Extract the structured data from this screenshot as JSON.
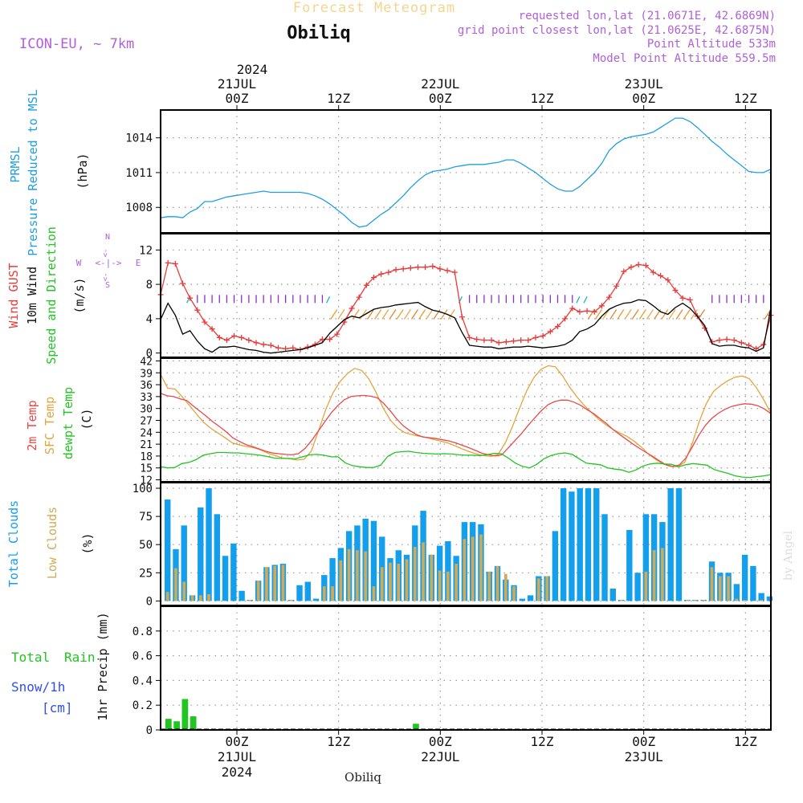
{
  "header": {
    "title": "Forecast Meteogram",
    "station": "Obiliq",
    "model": "ICON-EU, ~ 7km",
    "requested": "requested lon,lat (21.0671E, 42.6869N)",
    "gridpoint": "grid point closest lon,lat (21.0625E, 42.6875N)",
    "point_alt": "Point Altitude 533m",
    "model_alt": "Model Point Altitude 559.5m",
    "footer_station": "Obiliq",
    "watermark": "by Angel"
  },
  "time_axis": {
    "top_year": "2024",
    "top_labels": [
      {
        "l1": "21JUL",
        "l2": "00Z"
      },
      {
        "l1": "",
        "l2": "12Z"
      },
      {
        "l1": "22JUL",
        "l2": "00Z"
      },
      {
        "l1": "",
        "l2": "12Z"
      },
      {
        "l1": "23JUL",
        "l2": "00Z"
      },
      {
        "l1": "",
        "l2": "12Z"
      }
    ],
    "bottom_labels": [
      {
        "l1": "00Z",
        "l2": "21JUL",
        "l3": "2024"
      },
      {
        "l1": "12Z",
        "l2": "",
        "l3": ""
      },
      {
        "l1": "00Z",
        "l2": "22JUL",
        "l3": ""
      },
      {
        "l1": "12Z",
        "l2": "",
        "l3": ""
      },
      {
        "l1": "00Z",
        "l2": "23JUL",
        "l3": ""
      },
      {
        "l1": "12Z",
        "l2": "",
        "l3": ""
      }
    ]
  },
  "panels": {
    "pressure": {
      "label1": "PRMSL",
      "label2": "Pressure Reduced to MSL",
      "unit": "(hPa)",
      "ticks": [
        "1014",
        "1011",
        "1008"
      ]
    },
    "wind": {
      "label1": "Wind GUST",
      "label2": "10m Wind",
      "label3": "Speed and Direction",
      "unit": "(m/s)",
      "ticks": [
        "12",
        "8",
        "4",
        "0"
      ],
      "compass_n": "N",
      "compass_s": "S",
      "compass_w": "W",
      "compass_e": "E"
    },
    "temp": {
      "label1": "2m Temp",
      "label2": "SFC Temp",
      "label3": "dewpt Temp",
      "unit": "(C)",
      "ticks": [
        "42",
        "39",
        "36",
        "33",
        "30",
        "27",
        "24",
        "21",
        "18",
        "15",
        "12"
      ]
    },
    "clouds": {
      "label1": "Total Clouds",
      "label2": "Low Clouds",
      "unit": "(%)",
      "ticks": [
        "100",
        "75",
        "50",
        "25",
        "0"
      ]
    },
    "precip": {
      "label1": "Total",
      "label1b": "Rain",
      "label2": "Snow/1h",
      "label3": "[cm]",
      "ylabel": "1hr Precip (mm)",
      "ticks": [
        "0.8",
        "0.6",
        "0.4",
        "0.2",
        "0"
      ]
    }
  },
  "colors": {
    "pressure": "#1f9fe0",
    "gust": "#e83c3c",
    "wind": "#000000",
    "barb": "#8e2ad6",
    "temp2m": "#e84848",
    "sfc": "#e4a43c",
    "dew": "#22c422",
    "total_cloud": "#149fec",
    "low_cloud": "#d2aa55",
    "rain": "#22c422",
    "title": "#f5d58c",
    "purple": "#b060d8",
    "snow": "#2e4ef0"
  },
  "chart_data": {
    "type": "line",
    "x_start": "2024-07-20T15:00Z",
    "x_end": "2024-07-23T15:00Z",
    "step_hours": 1,
    "pressure_hpa": [
      1007.1,
      1007.2,
      1007.2,
      1007.1,
      1007.6,
      1007.9,
      1008.5,
      1008.5,
      1008.7,
      1008.9,
      1009.0,
      1009.1,
      1009.2,
      1009.3,
      1009.4,
      1009.3,
      1009.3,
      1009.3,
      1009.3,
      1009.3,
      1009.2,
      1009.0,
      1008.7,
      1008.3,
      1007.8,
      1007.3,
      1006.7,
      1006.3,
      1006.4,
      1006.9,
      1007.4,
      1007.8,
      1008.4,
      1009.0,
      1009.7,
      1010.3,
      1010.8,
      1011.1,
      1011.2,
      1011.3,
      1011.5,
      1011.6,
      1011.7,
      1011.7,
      1011.7,
      1011.8,
      1011.9,
      1012.1,
      1012.1,
      1011.8,
      1011.4,
      1011.0,
      1010.5,
      1010.0,
      1009.6,
      1009.4,
      1009.4,
      1009.8,
      1010.4,
      1011.0,
      1011.8,
      1012.9,
      1013.5,
      1013.9,
      1014.1,
      1014.2,
      1014.3,
      1014.5,
      1014.9,
      1015.3,
      1015.7,
      1015.7,
      1015.4,
      1014.9,
      1014.3,
      1013.7,
      1013.2,
      1012.6,
      1012.1,
      1011.6,
      1011.1,
      1011.0,
      1011.0,
      1011.3
    ],
    "gust_ms": [
      6.8,
      10.5,
      10.4,
      8.1,
      6.4,
      5.0,
      3.6,
      2.8,
      1.8,
      1.5,
      2.0,
      1.8,
      1.5,
      1.2,
      1.0,
      0.9,
      0.6,
      0.5,
      0.6,
      0.4,
      0.7,
      1.0,
      1.6,
      1.6,
      2.2,
      3.6,
      5.2,
      6.5,
      7.9,
      8.8,
      9.2,
      9.4,
      9.7,
      9.8,
      9.9,
      10.0,
      10.0,
      10.1,
      9.8,
      9.6,
      9.4,
      4.2,
      1.8,
      1.6,
      1.5,
      1.5,
      1.2,
      1.3,
      1.4,
      1.5,
      1.5,
      1.8,
      2.0,
      2.5,
      3.1,
      4.0,
      5.2,
      4.8,
      4.9,
      4.8,
      5.5,
      6.5,
      7.8,
      9.5,
      10.0,
      10.3,
      10.2,
      9.4,
      9.0,
      8.5,
      7.3,
      6.4,
      6.2,
      4.3,
      2.9,
      1.3,
      1.5,
      1.6,
      1.5,
      1.2,
      0.9,
      0.5,
      1.0,
      4.4
    ],
    "wind_ms": [
      3.9,
      5.8,
      4.4,
      2.2,
      2.6,
      1.4,
      0.5,
      0.1,
      0.7,
      0.7,
      0.8,
      0.6,
      0.4,
      0.3,
      0.1,
      0.0,
      0.1,
      0.2,
      0.3,
      0.4,
      0.6,
      0.9,
      1.2,
      2.3,
      3.1,
      3.9,
      4.3,
      4.1,
      4.6,
      5.1,
      5.3,
      5.4,
      5.6,
      5.7,
      5.8,
      5.9,
      5.4,
      5.0,
      4.8,
      4.5,
      4.1,
      2.4,
      0.9,
      0.8,
      0.7,
      0.7,
      0.5,
      0.6,
      0.7,
      0.7,
      0.8,
      0.7,
      0.6,
      0.7,
      0.8,
      1.0,
      1.5,
      2.5,
      2.8,
      3.3,
      4.3,
      5.1,
      5.5,
      5.8,
      5.9,
      6.2,
      6.1,
      5.5,
      4.8,
      4.5,
      5.3,
      5.8,
      5.2,
      4.3,
      3.2,
      1.1,
      0.8,
      0.9,
      0.9,
      0.7,
      0.6,
      0.2,
      0.6,
      5.3
    ],
    "temp2m_c": [
      33.8,
      33.2,
      33.0,
      32.4,
      32.0,
      30.6,
      29.3,
      28.0,
      26.6,
      25.4,
      24.1,
      22.6,
      21.7,
      20.9,
      20.4,
      19.8,
      19.2,
      18.8,
      18.6,
      18.4,
      18.3,
      18.6,
      19.9,
      21.9,
      24.2,
      26.6,
      28.9,
      30.7,
      32.2,
      33.0,
      33.2,
      33.3,
      33.1,
      32.7,
      31.3,
      29.4,
      27.3,
      25.6,
      24.4,
      23.4,
      22.8,
      22.6,
      22.4,
      22.1,
      21.8,
      21.3,
      20.7,
      20.1,
      19.4,
      18.7,
      18.3,
      18.0,
      18.3,
      20.1,
      21.9,
      23.7,
      25.7,
      27.6,
      29.4,
      30.9,
      31.7,
      32.1,
      32.1,
      31.6,
      30.8,
      29.7,
      28.7,
      27.4,
      26.1,
      24.6,
      23.4,
      22.2,
      21.0,
      19.9,
      18.9,
      17.9,
      16.8,
      15.8,
      15.4,
      15.7,
      17.4,
      20.2,
      23.2,
      25.7,
      27.5,
      28.8,
      29.8,
      30.5,
      30.9,
      31.2,
      31.1,
      30.7,
      29.9,
      28.7
    ],
    "sfc_c": [
      38.6,
      35.1,
      34.9,
      33.0,
      30.8,
      28.6,
      26.5,
      25.0,
      23.8,
      22.6,
      21.3,
      20.8,
      20.4,
      20.1,
      19.5,
      18.7,
      18.1,
      17.5,
      17.3,
      17.0,
      17.2,
      19.3,
      24.4,
      29.7,
      33.9,
      36.8,
      38.8,
      40.1,
      39.6,
      37.5,
      34.1,
      30.1,
      27.1,
      25.1,
      23.9,
      23.4,
      23.0,
      22.7,
      22.2,
      21.8,
      21.3,
      20.6,
      19.8,
      19.1,
      18.5,
      18.1,
      17.9,
      18.4,
      21.3,
      25.4,
      30.1,
      34.5,
      37.8,
      39.9,
      40.8,
      40.5,
      38.2,
      35.3,
      32.9,
      30.8,
      29.0,
      27.3,
      25.9,
      24.7,
      23.8,
      22.9,
      21.7,
      20.2,
      18.4,
      17.1,
      16.0,
      15.4,
      15.3,
      16.4,
      20.9,
      26.6,
      31.2,
      34.3,
      35.8,
      37.0,
      37.9,
      38.2,
      37.5,
      35.2,
      32.2,
      28.8
    ],
    "dew_c": [
      15.3,
      15.0,
      15.1,
      16.1,
      16.4,
      17.1,
      18.2,
      18.6,
      18.9,
      18.9,
      18.8,
      18.8,
      18.6,
      18.4,
      18.2,
      17.9,
      17.5,
      17.4,
      17.4,
      17.3,
      17.8,
      18.3,
      18.4,
      18.2,
      17.8,
      17.8,
      16.3,
      15.6,
      15.3,
      15.1,
      15.1,
      15.7,
      17.9,
      18.9,
      19.1,
      19.2,
      18.9,
      18.7,
      18.6,
      18.5,
      18.6,
      18.5,
      18.3,
      18.2,
      18.2,
      18.1,
      18.3,
      18.7,
      18.6,
      17.5,
      16.2,
      15.4,
      15.0,
      15.9,
      17.3,
      18.1,
      18.6,
      18.8,
      18.4,
      17.3,
      16.2,
      16.0,
      15.8,
      15.0,
      14.7,
      14.5,
      13.9,
      14.5,
      15.5,
      16.0,
      16.2,
      16.0,
      15.9,
      15.3,
      15.8,
      16.1,
      15.9,
      15.7,
      14.6,
      14.1,
      13.6,
      13.0,
      12.7,
      12.6,
      12.8,
      13.0,
      13.3
    ],
    "total_cloud_pct": [
      90,
      46,
      67,
      5,
      83,
      100,
      77,
      40,
      51,
      9,
      1,
      18,
      30,
      32,
      33,
      1,
      14,
      17,
      2,
      23,
      38,
      47,
      62,
      67,
      73,
      71,
      57,
      38,
      45,
      41,
      67,
      80,
      41,
      49,
      53,
      40,
      70,
      70,
      68,
      26,
      31,
      19,
      14,
      2,
      5,
      22,
      22,
      62,
      100,
      97,
      100,
      100,
      100,
      77,
      11,
      1,
      63,
      25,
      77,
      77,
      70,
      100,
      100,
      1,
      1,
      1,
      35,
      25,
      25,
      15,
      41,
      31,
      7,
      4
    ],
    "low_cloud_pct": [
      8,
      29,
      17,
      5,
      5,
      6,
      0,
      0,
      0,
      0,
      1,
      18,
      30,
      31,
      32,
      1,
      0,
      0,
      0,
      13,
      13,
      36,
      46,
      45,
      44,
      13,
      30,
      34,
      33,
      37,
      48,
      52,
      41,
      27,
      26,
      33,
      55,
      57,
      59,
      26,
      31,
      24,
      13,
      0,
      0,
      20,
      22,
      0,
      0,
      0,
      0,
      0,
      0,
      0,
      0,
      1,
      0,
      0,
      26,
      45,
      47,
      0,
      0,
      1,
      1,
      1,
      30,
      22,
      22,
      2,
      1,
      0,
      1,
      0
    ],
    "rain_mm": [
      0.09,
      0.07,
      0.25,
      0.11,
      0,
      0,
      0,
      0,
      0,
      0,
      0,
      0,
      0,
      0,
      0,
      0,
      0,
      0,
      0,
      0,
      0,
      0,
      0,
      0,
      0,
      0,
      0,
      0,
      0,
      0,
      0.05,
      0,
      0,
      0,
      0,
      0,
      0,
      0,
      0,
      0,
      0,
      0,
      0,
      0,
      0,
      0,
      0,
      0,
      0,
      0,
      0,
      0,
      0,
      0,
      0,
      0,
      0,
      0,
      0,
      0,
      0,
      0,
      0,
      0,
      0,
      0,
      0,
      0,
      0,
      0,
      0,
      0,
      0,
      0
    ],
    "ylim": {
      "pressure": [
        1005.8,
        1016.4
      ],
      "wind": [
        -0.5,
        13.9
      ],
      "temp": [
        11.5,
        42.7
      ],
      "cloud": [
        -4,
        105
      ],
      "precip": [
        0,
        1.0
      ]
    }
  }
}
